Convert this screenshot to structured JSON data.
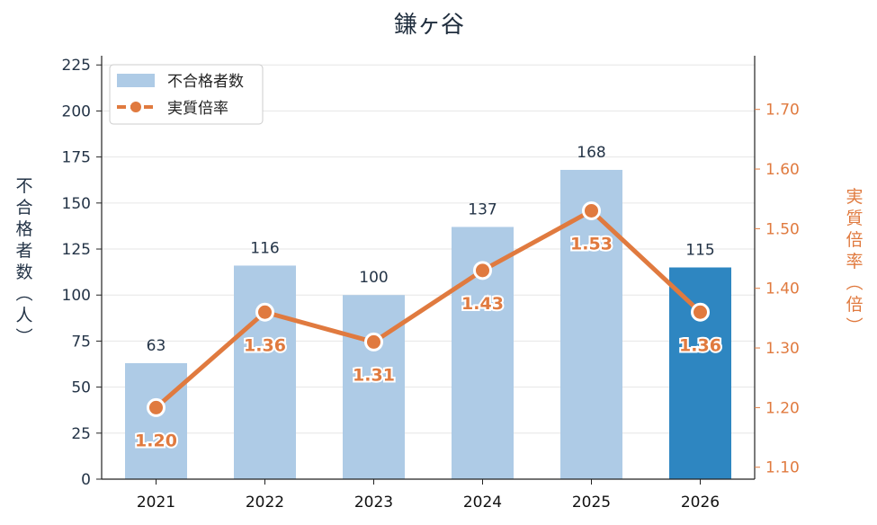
{
  "chart_data": {
    "type": "bar",
    "title": "鎌ヶ谷",
    "categories": [
      "2021",
      "2022",
      "2023",
      "2024",
      "2025",
      "2026"
    ],
    "series": [
      {
        "name": "不合格者数",
        "type": "bar",
        "axis": "left",
        "values": [
          63,
          116,
          100,
          137,
          168,
          115
        ],
        "color": "#aecbe6",
        "highlight_color": "#2e86c1",
        "highlight_index": 5
      },
      {
        "name": "実質倍率",
        "type": "line",
        "axis": "right",
        "values": [
          1.2,
          1.36,
          1.31,
          1.43,
          1.53,
          1.36
        ],
        "labels": [
          "1.20",
          "1.36",
          "1.31",
          "1.43",
          "1.53",
          "1.36"
        ],
        "color": "#e07a3f"
      }
    ],
    "ylabel_left": "不合格者数（人）",
    "ylabel_right": "実質倍率（倍）",
    "ylim_left": [
      0,
      230
    ],
    "ylim_right": [
      1.08,
      1.79
    ],
    "yticks_left": [
      "0",
      "25",
      "50",
      "75",
      "100",
      "125",
      "150",
      "175",
      "200",
      "225"
    ],
    "yticks_right": [
      "1.10",
      "1.20",
      "1.30",
      "1.40",
      "1.50",
      "1.60",
      "1.70"
    ],
    "grid": true,
    "legend_position": "top-left",
    "colors": {
      "left_axis": "#243447",
      "right_axis": "#e07a3f"
    }
  }
}
